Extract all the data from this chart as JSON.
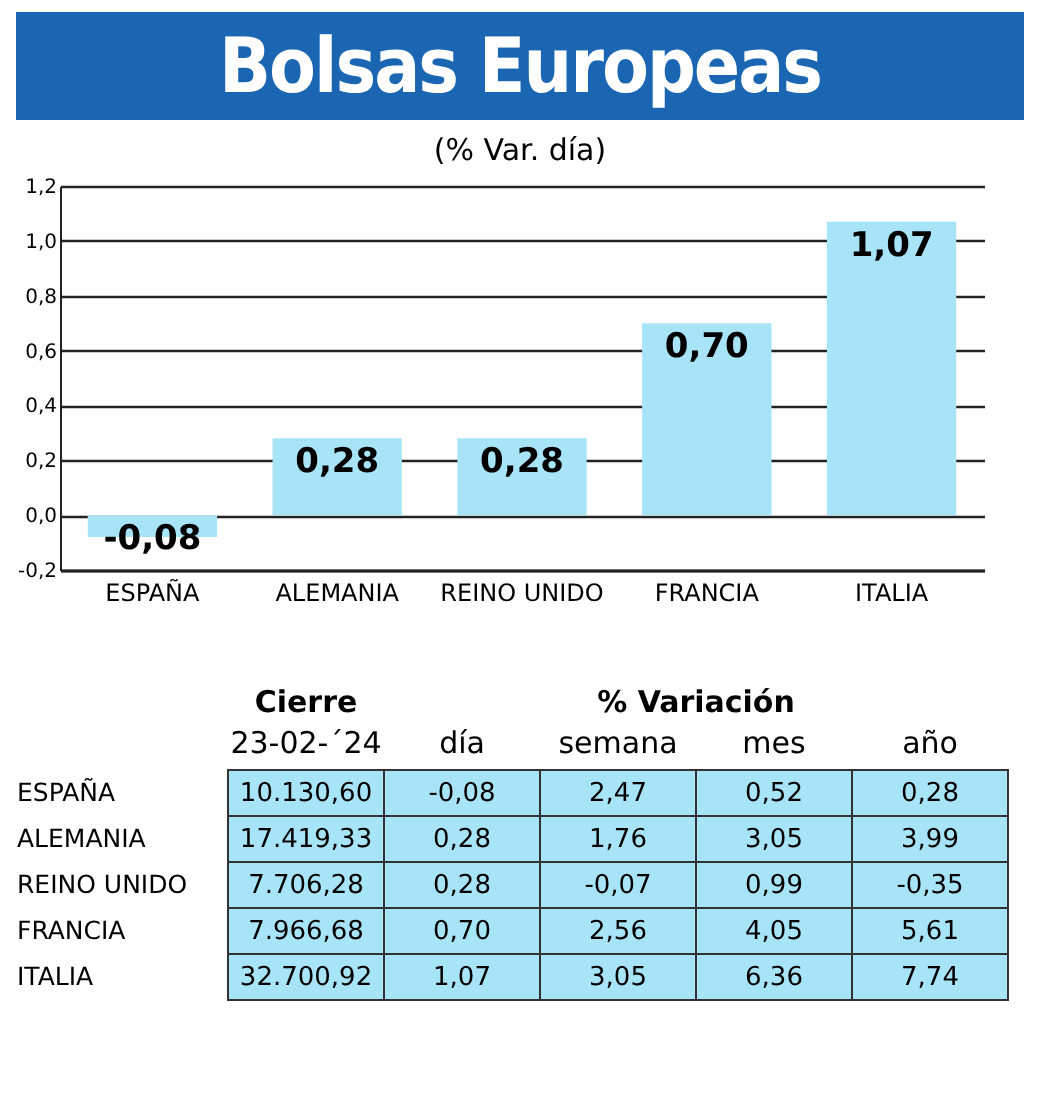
{
  "chart_data": [
    {
      "type": "bar",
      "title": "Bolsas Europeas",
      "subtitle": "(% Var. día)",
      "categories": [
        "ESPAÑA",
        "ALEMANIA",
        "REINO UNIDO",
        "FRANCIA",
        "ITALIA"
      ],
      "values": [
        -0.08,
        0.28,
        0.28,
        0.7,
        1.07
      ],
      "value_labels": [
        "-0,08",
        "0,28",
        "0,28",
        "0,70",
        "1,07"
      ],
      "color": "#a8e4f8",
      "ylim": [
        -0.2,
        1.2
      ],
      "yticks": [
        {
          "value": -0.2,
          "label": "-0,2"
        },
        {
          "value": 0,
          "label": "0,0"
        },
        {
          "value": 0.2,
          "label": "0,2"
        },
        {
          "value": 0.4,
          "label": "0,4"
        },
        {
          "value": 0.6,
          "label": "0,6"
        },
        {
          "value": 0.8,
          "label": "0,8"
        },
        {
          "value": 1.0,
          "label": "1,0"
        },
        {
          "value": 1.2,
          "label": "1,2"
        }
      ],
      "grid": "y"
    },
    {
      "type": "other",
      "annotations": [
        "Cierre",
        "% Variación"
      ],
      "categories": [
        "23-02-´24",
        "día",
        "semana",
        "mes",
        "año"
      ],
      "y_categories": [
        "ESPAÑA",
        "ALEMANIA",
        "REINO UNIDO",
        "FRANCIA",
        "ITALIA"
      ],
      "cell_labels": [
        [
          "10.130,60",
          "-0,08",
          "2,47",
          "0,52",
          "0,28"
        ],
        [
          "17.419,33",
          "0,28",
          "1,76",
          "3,05",
          "3,99"
        ],
        [
          "7.706,28",
          "0,28",
          "-0,07",
          "0,99",
          "-0,35"
        ],
        [
          "7.966,68",
          "0,70",
          "2,56",
          "4,05",
          "5,61"
        ],
        [
          "32.700,92",
          "1,07",
          "3,05",
          "6,36",
          "7,74"
        ]
      ],
      "color": "#a8e4f8"
    }
  ]
}
